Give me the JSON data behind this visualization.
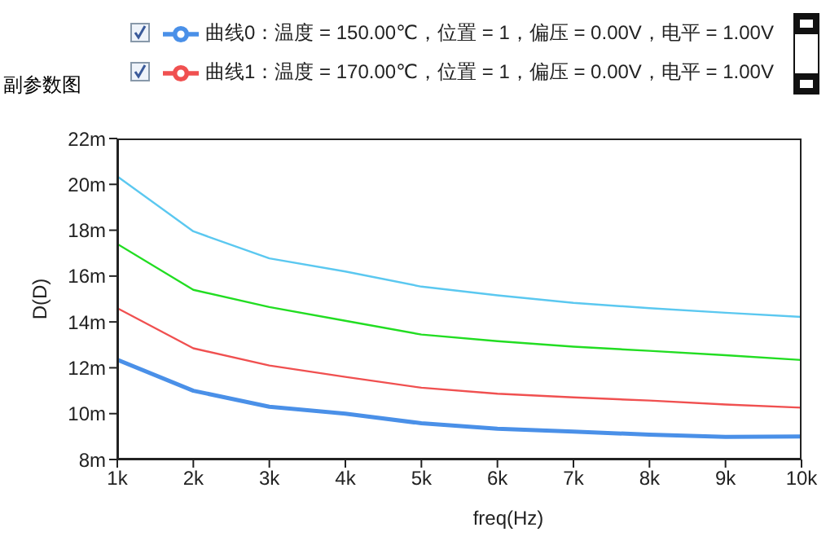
{
  "chart_data": {
    "type": "line",
    "title": "副参数图",
    "xlabel": "freq(Hz)",
    "ylabel": "D(D)",
    "x": [
      1000,
      2000,
      3000,
      4000,
      5000,
      6000,
      7000,
      8000,
      9000,
      10000
    ],
    "series": [
      {
        "name": "曲线0：温度 = 150.00℃，位置 = 1，偏压 = 0.00V，电平 = 1.00V",
        "color": "#4a90e8",
        "values": [
          12.35,
          11.0,
          10.3,
          10.0,
          9.58,
          9.34,
          9.22,
          9.08,
          8.99,
          9.0
        ]
      },
      {
        "name": "曲线1：温度 = 170.00℃，位置 = 1，偏压 = 0.00V，电平 = 1.00V",
        "color": "#f05050",
        "values": [
          14.6,
          12.85,
          12.1,
          11.6,
          11.13,
          10.87,
          10.71,
          10.57,
          10.4,
          10.26
        ]
      },
      {
        "color": "#22dd22",
        "values": [
          17.4,
          15.4,
          14.65,
          14.05,
          13.45,
          13.16,
          12.92,
          12.74,
          12.55,
          12.34
        ]
      },
      {
        "color": "#5bc8f0",
        "values": [
          20.35,
          17.95,
          16.77,
          16.2,
          15.54,
          15.16,
          14.83,
          14.6,
          14.4,
          14.22
        ]
      }
    ],
    "xlim": [
      1000,
      10000
    ],
    "xticks": [
      {
        "value": 1000,
        "label": "1k"
      },
      {
        "value": 2000,
        "label": "2k"
      },
      {
        "value": 3000,
        "label": "3k"
      },
      {
        "value": 4000,
        "label": "4k"
      },
      {
        "value": 5000,
        "label": "5k"
      },
      {
        "value": 6000,
        "label": "6k"
      },
      {
        "value": 7000,
        "label": "7k"
      },
      {
        "value": 8000,
        "label": "8k"
      },
      {
        "value": 9000,
        "label": "9k"
      },
      {
        "value": 10000,
        "label": "10k"
      }
    ],
    "ylim": [
      8,
      22
    ],
    "yticks": [
      {
        "value": 8,
        "label": "8m"
      },
      {
        "value": 10,
        "label": "10m"
      },
      {
        "value": 12,
        "label": "12m"
      },
      {
        "value": 14,
        "label": "14m"
      },
      {
        "value": 16,
        "label": "16m"
      },
      {
        "value": 18,
        "label": "18m"
      },
      {
        "value": 20,
        "label": "20m"
      },
      {
        "value": 22,
        "label": "22m"
      }
    ],
    "grid": false,
    "legend": "top",
    "marker": "none",
    "line_style": "solid"
  }
}
